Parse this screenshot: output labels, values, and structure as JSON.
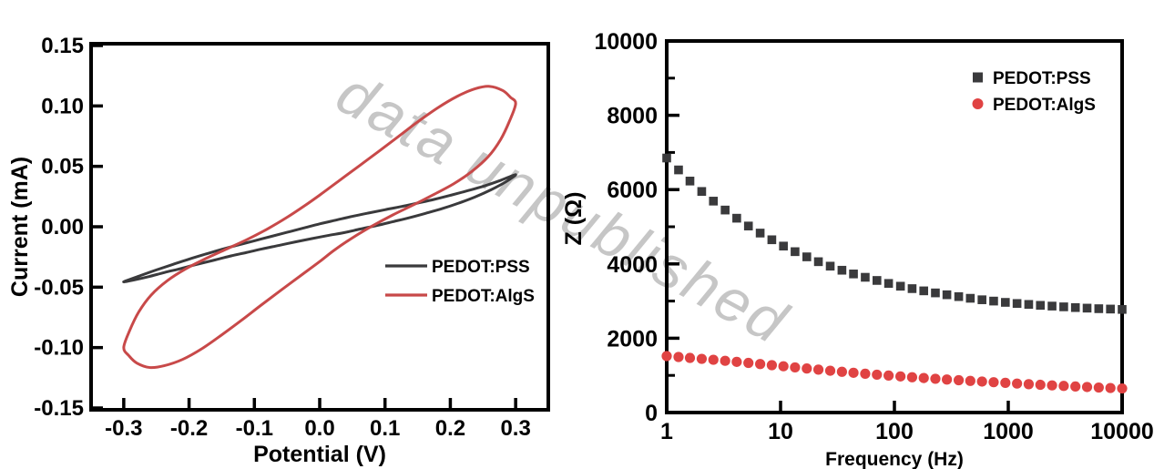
{
  "figure": {
    "watermark_text": "data unpublished",
    "watermark_color": "#c6c6c6",
    "background_color": "#ffffff",
    "axis_color": "#000000"
  },
  "chart_data": [
    {
      "id": "cv-plot",
      "type": "line",
      "title": "",
      "xlabel": "Potential (V)",
      "ylabel": "Current (mA)",
      "xlim": [
        -0.35,
        0.35
      ],
      "ylim": [
        -0.1515,
        0.1515
      ],
      "grid": false,
      "xticks": {
        "values": [
          -0.3,
          -0.2,
          -0.1,
          0.0,
          0.1,
          0.2,
          0.3
        ],
        "labels": [
          "-0.3",
          "-0.2",
          "-0.1",
          "0.0",
          "0.1",
          "0.2",
          "0.3"
        ]
      },
      "yticks": {
        "values": [
          -0.15,
          -0.1,
          -0.05,
          0.0,
          0.05,
          0.1,
          0.15
        ],
        "labels": [
          "-0.15",
          "-0.10",
          "-0.05",
          "0.00",
          "0.05",
          "0.10",
          "0.15"
        ]
      },
      "legend": {
        "position": "inside-right-middle",
        "entries": [
          {
            "label": "PEDOT:PSS",
            "swatch": "line",
            "color": "#3a3a3c"
          },
          {
            "label": "PEDOT:AlgS",
            "swatch": "line",
            "color": "#c84949"
          }
        ]
      },
      "series": [
        {
          "name": "PEDOT:PSS",
          "color": "#3a3a3c",
          "shape": "closed-loop",
          "points": [
            [
              -0.3,
              -0.0455
            ],
            [
              -0.275,
              -0.0405
            ],
            [
              -0.25,
              -0.0357
            ],
            [
              -0.225,
              -0.0312
            ],
            [
              -0.2,
              -0.0268
            ],
            [
              -0.175,
              -0.0227
            ],
            [
              -0.15,
              -0.0187
            ],
            [
              -0.125,
              -0.0151
            ],
            [
              -0.1,
              -0.0116
            ],
            [
              -0.075,
              -0.0081
            ],
            [
              -0.05,
              -0.0046
            ],
            [
              -0.025,
              -0.0011
            ],
            [
              0.0,
              0.0024
            ],
            [
              0.025,
              0.0055
            ],
            [
              0.05,
              0.0086
            ],
            [
              0.075,
              0.0114
            ],
            [
              0.1,
              0.0141
            ],
            [
              0.125,
              0.0167
            ],
            [
              0.15,
              0.0196
            ],
            [
              0.175,
              0.0226
            ],
            [
              0.2,
              0.026
            ],
            [
              0.225,
              0.0296
            ],
            [
              0.25,
              0.0334
            ],
            [
              0.275,
              0.038
            ],
            [
              0.3,
              0.0432
            ],
            [
              0.285,
              0.0372
            ],
            [
              0.262,
              0.0305
            ],
            [
              0.238,
              0.0247
            ],
            [
              0.212,
              0.0194
            ],
            [
              0.188,
              0.0151
            ],
            [
              0.162,
              0.0111
            ],
            [
              0.138,
              0.0076
            ],
            [
              0.112,
              0.0042
            ],
            [
              0.088,
              0.0011
            ],
            [
              0.062,
              -0.0019
            ],
            [
              0.038,
              -0.0048
            ],
            [
              0.012,
              -0.0073
            ],
            [
              -0.012,
              -0.0098
            ],
            [
              -0.038,
              -0.0126
            ],
            [
              -0.062,
              -0.0154
            ],
            [
              -0.088,
              -0.0183
            ],
            [
              -0.112,
              -0.0213
            ],
            [
              -0.138,
              -0.0244
            ],
            [
              -0.162,
              -0.0277
            ],
            [
              -0.188,
              -0.0311
            ],
            [
              -0.212,
              -0.0345
            ],
            [
              -0.238,
              -0.0379
            ],
            [
              -0.262,
              -0.0413
            ],
            [
              -0.285,
              -0.0441
            ]
          ]
        },
        {
          "name": "PEDOT:AlgS",
          "color": "#c84949",
          "shape": "closed-loop",
          "points": [
            [
              -0.3,
              -0.1
            ],
            [
              -0.291,
              -0.086
            ],
            [
              -0.277,
              -0.0705
            ],
            [
              -0.258,
              -0.0565
            ],
            [
              -0.233,
              -0.0445
            ],
            [
              -0.205,
              -0.0348
            ],
            [
              -0.175,
              -0.0265
            ],
            [
              -0.145,
              -0.019
            ],
            [
              -0.112,
              -0.0108
            ],
            [
              -0.08,
              -0.0018
            ],
            [
              -0.05,
              0.0078
            ],
            [
              -0.022,
              0.0178
            ],
            [
              0.0,
              0.0262
            ],
            [
              0.03,
              0.0382
            ],
            [
              0.06,
              0.0502
            ],
            [
              0.09,
              0.0622
            ],
            [
              0.12,
              0.0745
            ],
            [
              0.15,
              0.0868
            ],
            [
              0.18,
              0.0982
            ],
            [
              0.21,
              0.1078
            ],
            [
              0.238,
              0.1142
            ],
            [
              0.26,
              0.1162
            ],
            [
              0.28,
              0.1128
            ],
            [
              0.292,
              0.1072
            ],
            [
              0.3,
              0.102
            ],
            [
              0.291,
              0.088
            ],
            [
              0.277,
              0.0722
            ],
            [
              0.258,
              0.058
            ],
            [
              0.233,
              0.0458
            ],
            [
              0.205,
              0.0355
            ],
            [
              0.175,
              0.0268
            ],
            [
              0.145,
              0.0185
            ],
            [
              0.112,
              0.0098
            ],
            [
              0.08,
              0.0005
            ],
            [
              0.05,
              -0.0092
            ],
            [
              0.022,
              -0.0195
            ],
            [
              0.0,
              -0.0288
            ],
            [
              -0.03,
              -0.0408
            ],
            [
              -0.06,
              -0.0528
            ],
            [
              -0.09,
              -0.065
            ],
            [
              -0.12,
              -0.0775
            ],
            [
              -0.15,
              -0.0895
            ],
            [
              -0.18,
              -0.1008
            ],
            [
              -0.21,
              -0.1098
            ],
            [
              -0.238,
              -0.115
            ],
            [
              -0.26,
              -0.1165
            ],
            [
              -0.28,
              -0.1128
            ],
            [
              -0.292,
              -0.1068
            ]
          ]
        }
      ]
    },
    {
      "id": "impedance-plot",
      "type": "scatter",
      "title": "",
      "xlabel": "Frequency (Hz)",
      "ylabel": "Z (Ω)",
      "xscale": "log",
      "xlim": [
        1,
        10000
      ],
      "ylim": [
        0,
        10000
      ],
      "grid": false,
      "xticks": {
        "values": [
          1,
          10,
          100,
          1000,
          10000
        ],
        "labels": [
          "1",
          "10",
          "100",
          "1000",
          "10000"
        ]
      },
      "yticks": {
        "values": [
          0,
          2000,
          4000,
          6000,
          8000,
          10000
        ],
        "labels": [
          "0",
          "2000",
          "4000",
          "6000",
          "8000",
          "10000"
        ],
        "minor_step": 1000
      },
      "legend": {
        "position": "inside-top-right",
        "entries": [
          {
            "label": "PEDOT:PSS",
            "swatch": "square",
            "color": "#3a3a3c"
          },
          {
            "label": "PEDOT:AlgS",
            "swatch": "circle",
            "color": "#e04343"
          }
        ]
      },
      "series": [
        {
          "name": "PEDOT:PSS",
          "marker": "square",
          "color": "#3a3a3c",
          "x": [
            1.0,
            1.27,
            1.6,
            2.03,
            2.57,
            3.26,
            4.12,
            5.22,
            6.62,
            8.38,
            10.6,
            13.4,
            17.0,
            21.5,
            27.3,
            34.6,
            43.7,
            55.4,
            70.2,
            88.9,
            113,
            143,
            181,
            229,
            289,
            367,
            464,
            588,
            744,
            943,
            1194,
            1512,
            1914,
            2424,
            3070,
            3887,
            4923,
            6234,
            7894,
            10000
          ],
          "y": [
            6850,
            6530,
            6230,
            5950,
            5690,
            5450,
            5230,
            5020,
            4830,
            4650,
            4480,
            4330,
            4190,
            4060,
            3940,
            3830,
            3730,
            3640,
            3555,
            3475,
            3400,
            3335,
            3275,
            3220,
            3170,
            3120,
            3075,
            3035,
            3000,
            2965,
            2935,
            2910,
            2885,
            2865,
            2845,
            2825,
            2810,
            2795,
            2785,
            2775
          ]
        },
        {
          "name": "PEDOT:AlgS",
          "marker": "circle",
          "color": "#e04343",
          "x": [
            1.0,
            1.27,
            1.6,
            2.03,
            2.57,
            3.26,
            4.12,
            5.22,
            6.62,
            8.38,
            10.6,
            13.4,
            17.0,
            21.5,
            27.3,
            34.6,
            43.7,
            55.4,
            70.2,
            88.9,
            113,
            143,
            181,
            229,
            289,
            367,
            464,
            588,
            744,
            943,
            1194,
            1512,
            1914,
            2424,
            3070,
            3887,
            4923,
            6234,
            7894,
            10000
          ],
          "y": [
            1520,
            1495,
            1470,
            1445,
            1420,
            1392,
            1364,
            1335,
            1305,
            1275,
            1245,
            1215,
            1185,
            1155,
            1125,
            1097,
            1070,
            1044,
            1019,
            995,
            972,
            950,
            929,
            909,
            889,
            870,
            852,
            834,
            817,
            800,
            780,
            763,
            747,
            731,
            716,
            701,
            687,
            673,
            660,
            648
          ]
        }
      ]
    }
  ]
}
